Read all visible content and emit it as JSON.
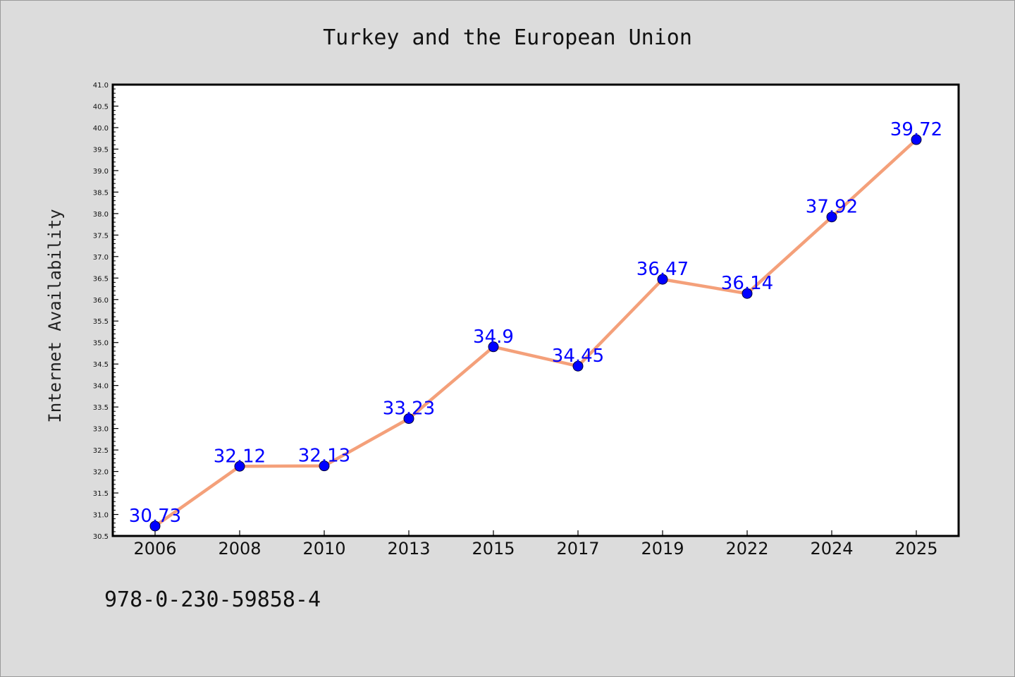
{
  "chart_data": {
    "type": "line",
    "title": "Turkey and the European Union",
    "xlabel": "",
    "ylabel": "Internet Availability",
    "categories": [
      "2006",
      "2008",
      "2010",
      "2013",
      "2015",
      "2017",
      "2019",
      "2022",
      "2024",
      "2025"
    ],
    "series": [
      {
        "values": [
          30.73,
          32.12,
          32.13,
          33.23,
          34.9,
          34.45,
          36.47,
          36.14,
          37.92,
          39.72
        ],
        "data_labels": [
          "30.73",
          "32.12",
          "32.13",
          "33.23",
          "34.9",
          "34.45",
          "36.47",
          "36.14",
          "37.92",
          "39.72"
        ],
        "line_color": "#f4a07a",
        "marker_color": "#0000ff"
      }
    ],
    "ylim": [
      30.5,
      41.0
    ],
    "yticks": [
      "30.5",
      "31.0",
      "31.5",
      "32.0",
      "32.5",
      "33.0",
      "33.5",
      "34.0",
      "34.5",
      "35.0",
      "35.5",
      "36.0",
      "36.5",
      "37.0",
      "37.5",
      "38.0",
      "38.5",
      "39.0",
      "39.5",
      "40.0",
      "40.5",
      "41.0"
    ],
    "grid": false,
    "legend": "none",
    "label_color": "#0000ff",
    "background": "#dcdcdc",
    "plot_background": "#ffffff"
  },
  "footer": {
    "isbn": "978-0-230-59858-4"
  }
}
